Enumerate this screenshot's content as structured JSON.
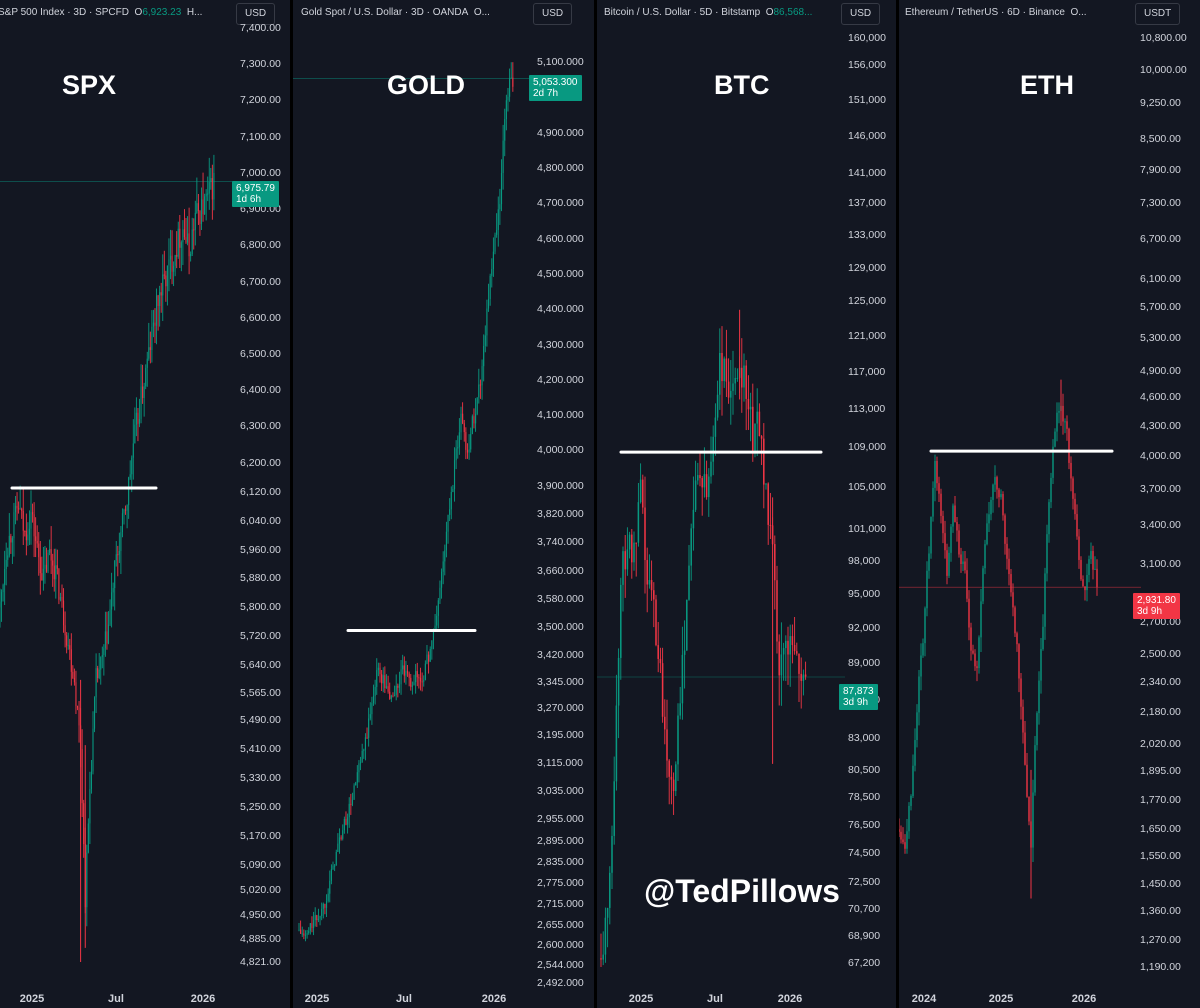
{
  "chart_data": [
    {
      "type": "candlestick",
      "header": "S&P 500 Index · 3D · SPCFD",
      "open_label": "O",
      "open_value": "6,923.23",
      "header_tail": "H...",
      "currency": "USD",
      "big_label": "SPX",
      "price_tag": "6,975.79",
      "countdown": "1d 6h",
      "level_line": 6130,
      "x_labels": [
        "2025",
        "Jul",
        "2026"
      ],
      "y_ticks": [
        "7,400.00",
        "7,300.00",
        "7,200.00",
        "7,100.00",
        "7,000.00",
        "6,900.00",
        "6,800.00",
        "6,700.00",
        "6,600.00",
        "6,500.00",
        "6,400.00",
        "6,300.00",
        "6,200.00",
        "6,120.00",
        "6,040.00",
        "5,960.00",
        "5,880.00",
        "5,800.00",
        "5,720.00",
        "5,640.00",
        "5,565.00",
        "5,490.00",
        "5,410.00",
        "5,330.00",
        "5,250.00",
        "5,170.00",
        "5,090.00",
        "5,020.00",
        "4,950.00",
        "4,885.00",
        "4,821.00"
      ],
      "path": [
        [
          0,
          5800
        ],
        [
          4,
          5960
        ],
        [
          8,
          6020
        ],
        [
          12,
          6080
        ],
        [
          16,
          6000
        ],
        [
          20,
          6060
        ],
        [
          24,
          5960
        ],
        [
          28,
          5880
        ],
        [
          32,
          5950
        ],
        [
          36,
          5900
        ],
        [
          40,
          5800
        ],
        [
          44,
          5700
        ],
        [
          48,
          5600
        ],
        [
          52,
          5420
        ],
        [
          55,
          5000
        ],
        [
          58,
          5300
        ],
        [
          62,
          5600
        ],
        [
          66,
          5650
        ],
        [
          70,
          5750
        ],
        [
          74,
          5900
        ],
        [
          78,
          6000
        ],
        [
          82,
          6100
        ],
        [
          86,
          6250
        ],
        [
          90,
          6350
        ],
        [
          94,
          6450
        ],
        [
          98,
          6550
        ],
        [
          102,
          6650
        ],
        [
          106,
          6700
        ],
        [
          110,
          6750
        ],
        [
          114,
          6800
        ],
        [
          118,
          6850
        ],
        [
          122,
          6780
        ],
        [
          126,
          6880
        ],
        [
          130,
          6900
        ],
        [
          134,
          6930
        ],
        [
          138,
          6976
        ]
      ],
      "spikes": [
        [
          52,
          4821
        ],
        [
          55,
          4860
        ]
      ]
    },
    {
      "type": "candlestick",
      "header": "Gold Spot / U.S. Dollar · 3D · OANDA",
      "open_label": "O...",
      "open_value": "",
      "header_tail": "",
      "currency": "USD",
      "big_label": "GOLD",
      "price_tag": "5,053.300",
      "countdown": "2d 7h",
      "level_line": 3490,
      "x_labels": [
        "2025",
        "Jul",
        "2026"
      ],
      "y_ticks": [
        "5,100.000",
        "4,900.000",
        "4,800.000",
        "4,700.000",
        "4,600.000",
        "4,500.000",
        "4,400.000",
        "4,300.000",
        "4,200.000",
        "4,100.000",
        "4,000.000",
        "3,900.000",
        "3,820.000",
        "3,740.000",
        "3,660.000",
        "3,580.000",
        "3,500.000",
        "3,420.000",
        "3,345.000",
        "3,270.000",
        "3,195.000",
        "3,115.000",
        "3,035.000",
        "2,955.000",
        "2,895.000",
        "2,835.000",
        "2,775.000",
        "2,715.000",
        "2,655.000",
        "2,600.000",
        "2,544.000",
        "2,492.000"
      ],
      "path": [
        [
          0,
          2640
        ],
        [
          4,
          2620
        ],
        [
          8,
          2660
        ],
        [
          12,
          2680
        ],
        [
          16,
          2720
        ],
        [
          20,
          2800
        ],
        [
          24,
          2880
        ],
        [
          28,
          2940
        ],
        [
          32,
          3000
        ],
        [
          36,
          3080
        ],
        [
          40,
          3150
        ],
        [
          44,
          3250
        ],
        [
          48,
          3380
        ],
        [
          52,
          3350
        ],
        [
          56,
          3300
        ],
        [
          60,
          3320
        ],
        [
          64,
          3380
        ],
        [
          68,
          3340
        ],
        [
          72,
          3360
        ],
        [
          76,
          3350
        ],
        [
          80,
          3420
        ],
        [
          84,
          3500
        ],
        [
          88,
          3650
        ],
        [
          92,
          3800
        ],
        [
          96,
          3950
        ],
        [
          100,
          4100
        ],
        [
          104,
          4000
        ],
        [
          108,
          4100
        ],
        [
          112,
          4200
        ],
        [
          116,
          4400
        ],
        [
          120,
          4550
        ],
        [
          124,
          4700
        ],
        [
          128,
          5000
        ],
        [
          132,
          5053
        ]
      ],
      "spikes": []
    },
    {
      "type": "candlestick",
      "header": "Bitcoin / U.S. Dollar · 5D · Bitstamp",
      "open_label": "O",
      "open_value": "86,568...",
      "header_tail": "",
      "currency": "USD",
      "big_label": "BTC",
      "price_tag": "87,873",
      "countdown": "3d 9h",
      "level_line": 108500,
      "x_labels": [
        "2025",
        "Jul",
        "2026"
      ],
      "y_ticks": [
        "160,000",
        "156,000",
        "151,000",
        "146,000",
        "141,000",
        "137,000",
        "133,000",
        "129,000",
        "125,000",
        "121,000",
        "117,000",
        "113,000",
        "109,000",
        "105,000",
        "101,000",
        "98,000",
        "95,000",
        "92,000",
        "89,000",
        "86,000",
        "83,000",
        "80,500",
        "78,500",
        "76,500",
        "74,500",
        "72,500",
        "70,700",
        "68,900",
        "67,200"
      ],
      "path": [
        [
          0,
          67500
        ],
        [
          3,
          70000
        ],
        [
          6,
          80000
        ],
        [
          9,
          96000
        ],
        [
          12,
          100000
        ],
        [
          15,
          98000
        ],
        [
          18,
          104000
        ],
        [
          21,
          96000
        ],
        [
          24,
          94000
        ],
        [
          27,
          88000
        ],
        [
          30,
          82000
        ],
        [
          33,
          80000
        ],
        [
          36,
          85000
        ],
        [
          39,
          95000
        ],
        [
          42,
          104000
        ],
        [
          45,
          106000
        ],
        [
          48,
          104000
        ],
        [
          51,
          110000
        ],
        [
          54,
          118000
        ],
        [
          57,
          116000
        ],
        [
          60,
          114000
        ],
        [
          63,
          118000
        ],
        [
          66,
          116000
        ],
        [
          69,
          110000
        ],
        [
          72,
          112000
        ],
        [
          75,
          104000
        ],
        [
          78,
          98000
        ],
        [
          81,
          88000
        ],
        [
          84,
          90000
        ],
        [
          87,
          92000
        ],
        [
          90,
          88000
        ],
        [
          93,
          87873
        ]
      ],
      "spikes": [
        [
          63,
          124000
        ],
        [
          78,
          81000
        ]
      ]
    },
    {
      "type": "candlestick",
      "header": "Ethereum / TetherUS · 6D · Binance",
      "open_label": "O...",
      "open_value": "",
      "header_tail": "",
      "currency": "USDT",
      "big_label": "ETH",
      "price_tag": "2,931.80",
      "countdown": "3d 9h",
      "level_line": 4050,
      "x_labels": [
        "2024",
        "2025",
        "2026"
      ],
      "y_ticks": [
        "10,800.00",
        "10,000.00",
        "9,250.00",
        "8,500.00",
        "7,900.00",
        "7,300.00",
        "6,700.00",
        "6,100.00",
        "5,700.00",
        "5,300.00",
        "4,900.00",
        "4,600.00",
        "4,300.00",
        "4,000.00",
        "3,700.00",
        "3,400.00",
        "3,100.00",
        "2,700.00",
        "2,500.00",
        "2,340.00",
        "2,180.00",
        "2,020.00",
        "1,895.00",
        "1,770.00",
        "1,650.00",
        "1,550.00",
        "1,450.00",
        "1,360.00",
        "1,270.00",
        "1,190.00"
      ],
      "path": [
        [
          0,
          1650
        ],
        [
          3,
          1600
        ],
        [
          6,
          1800
        ],
        [
          9,
          2200
        ],
        [
          12,
          2600
        ],
        [
          15,
          3200
        ],
        [
          18,
          3900
        ],
        [
          21,
          3500
        ],
        [
          24,
          3000
        ],
        [
          27,
          3600
        ],
        [
          30,
          3200
        ],
        [
          33,
          3000
        ],
        [
          36,
          2500
        ],
        [
          39,
          2400
        ],
        [
          42,
          3100
        ],
        [
          45,
          3500
        ],
        [
          48,
          3800
        ],
        [
          51,
          3600
        ],
        [
          54,
          3100
        ],
        [
          57,
          2800
        ],
        [
          60,
          2400
        ],
        [
          63,
          1900
        ],
        [
          66,
          1600
        ],
        [
          69,
          2200
        ],
        [
          72,
          2700
        ],
        [
          75,
          3600
        ],
        [
          78,
          4300
        ],
        [
          81,
          4500
        ],
        [
          84,
          4200
        ],
        [
          87,
          3600
        ],
        [
          90,
          3100
        ],
        [
          93,
          2900
        ],
        [
          96,
          3200
        ],
        [
          99,
          2932
        ]
      ],
      "spikes": [
        [
          66,
          1400
        ],
        [
          81,
          4800
        ]
      ]
    }
  ],
  "watermark": "@TedPillows",
  "colors": {
    "background": "#131722",
    "up": "#089981",
    "down": "#f23645",
    "text": "#d1d4dc"
  }
}
